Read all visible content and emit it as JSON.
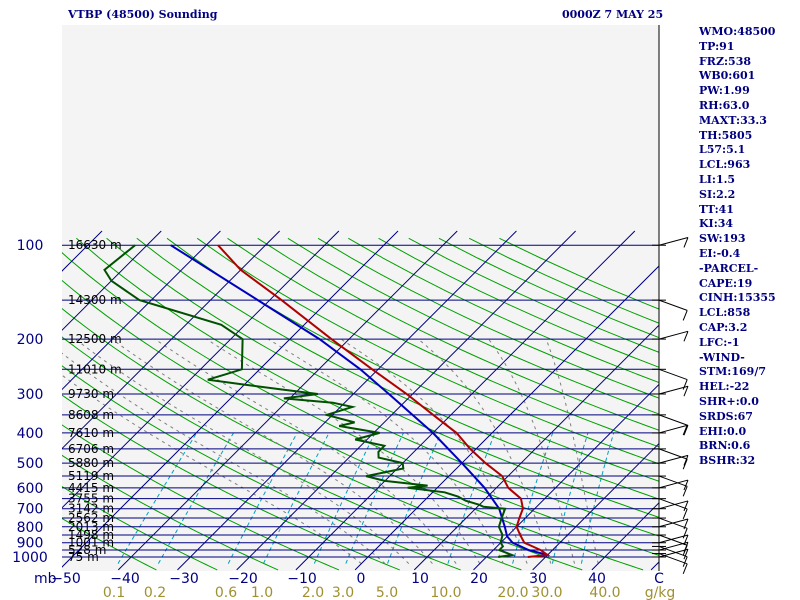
{
  "header": {
    "station": "VTBP (48500) Sounding",
    "time": "0000Z  7 MAY 25"
  },
  "stats": [
    "WMO:48500",
    "TP:91",
    "FRZ:538",
    "WB0:601",
    "PW:1.99",
    "RH:63.0",
    "MAXT:33.3",
    "TH:5805",
    "L57:5.1",
    "LCL:963",
    "LI:1.5",
    "SI:2.2",
    "TT:41",
    "KI:34",
    "SW:193",
    "EI:-0.4",
    "-PARCEL-",
    "CAPE:19",
    "CINH:15355",
    "LCL:858",
    "CAP:3.2",
    "LFC:-1",
    "-WIND-",
    "STM:169/7",
    "HEL:-22",
    "SHR+:0.0",
    "SRDS:67",
    "EHI:0.0",
    "BRN:0.6",
    "BSHR:32"
  ],
  "colors": {
    "text": "#000080",
    "isobar": "#000080",
    "isotherm": "#000080",
    "dry_adiabat": "#00a000",
    "moist_adiabat": "#808080",
    "mixing_ratio": "#00a0c0",
    "temperature": "#b00000",
    "dewpoint": "#005000",
    "parcel": "#0000c0",
    "wind": "#000000",
    "mixing_label": "#a09030"
  },
  "chart_data": {
    "type": "skew-t",
    "pressure_ticks": [
      100,
      200,
      300,
      400,
      500,
      600,
      700,
      800,
      900,
      1000
    ],
    "unit_label": "mb",
    "isobars": [
      {
        "p": 100,
        "height": "16630 m"
      },
      {
        "p": 150,
        "height": "14300 m"
      },
      {
        "p": 200,
        "height": "12500 m"
      },
      {
        "p": 250,
        "height": "11010 m"
      },
      {
        "p": 300,
        "height": "9730 m"
      },
      {
        "p": 350,
        "height": "8608 m"
      },
      {
        "p": 400,
        "height": "7610 m"
      },
      {
        "p": 450,
        "height": "6706 m"
      },
      {
        "p": 500,
        "height": "5880 m"
      },
      {
        "p": 550,
        "height": "5119 m"
      },
      {
        "p": 600,
        "height": "4415 m"
      },
      {
        "p": 650,
        "height": "3755 m"
      },
      {
        "p": 700,
        "height": "3142 m"
      },
      {
        "p": 750,
        "height": "2562 m"
      },
      {
        "p": 800,
        "height": "2013 m"
      },
      {
        "p": 850,
        "height": "1498 m"
      },
      {
        "p": 900,
        "height": "1001 m"
      },
      {
        "p": 950,
        "height": "528 m"
      },
      {
        "p": 1000,
        "height": "75 m"
      }
    ],
    "temperature_ticks": [
      "−50",
      "−40",
      "−30",
      "−20",
      "−10",
      "0",
      "10",
      "20",
      "30",
      "40"
    ],
    "temperature_tick_values": [
      -50,
      -40,
      -30,
      -20,
      -10,
      0,
      10,
      20,
      30,
      40
    ],
    "extra_bottom_label": "C",
    "mixing_ratio_ticks": [
      "0.1",
      "0.2",
      "0.6",
      "1.0",
      "2.0",
      "3.0",
      "5.0",
      "10.0",
      "20.0",
      "30.0",
      "40.0"
    ],
    "mixing_ratio_unit": "g/kg",
    "temperature_profile": [
      [
        1000,
        27
      ],
      [
        985,
        30
      ],
      [
        950,
        28
      ],
      [
        925,
        26
      ],
      [
        900,
        24
      ],
      [
        850,
        22
      ],
      [
        800,
        20
      ],
      [
        750,
        19
      ],
      [
        700,
        18
      ],
      [
        650,
        16
      ],
      [
        600,
        12
      ],
      [
        550,
        9
      ],
      [
        500,
        4
      ],
      [
        450,
        -1
      ],
      [
        400,
        -6
      ],
      [
        350,
        -13
      ],
      [
        300,
        -21
      ],
      [
        250,
        -31
      ],
      [
        200,
        -43
      ],
      [
        150,
        -58
      ],
      [
        120,
        -70
      ],
      [
        100,
        -78
      ]
    ],
    "dewpoint_profile": [
      [
        1000,
        22
      ],
      [
        985,
        24
      ],
      [
        950,
        21
      ],
      [
        925,
        21
      ],
      [
        900,
        20
      ],
      [
        850,
        19
      ],
      [
        800,
        17
      ],
      [
        750,
        16
      ],
      [
        700,
        15
      ],
      [
        690,
        11
      ],
      [
        680,
        10
      ],
      [
        660,
        7
      ],
      [
        640,
        5
      ],
      [
        620,
        2
      ],
      [
        600,
        -5
      ],
      [
        590,
        -2
      ],
      [
        570,
        -10
      ],
      [
        550,
        -14
      ],
      [
        520,
        -9
      ],
      [
        500,
        -10
      ],
      [
        480,
        -15
      ],
      [
        460,
        -16
      ],
      [
        440,
        -16
      ],
      [
        420,
        -22
      ],
      [
        400,
        -19
      ],
      [
        380,
        -27
      ],
      [
        370,
        -25
      ],
      [
        360,
        -28
      ],
      [
        350,
        -31
      ],
      [
        330,
        -28
      ],
      [
        320,
        -32
      ],
      [
        310,
        -41
      ],
      [
        300,
        -36
      ],
      [
        290,
        -43
      ],
      [
        280,
        -50
      ],
      [
        270,
        -57
      ],
      [
        260,
        -55
      ],
      [
        250,
        -53
      ],
      [
        200,
        -58
      ],
      [
        180,
        -64
      ],
      [
        150,
        -82
      ],
      [
        130,
        -90
      ],
      [
        120,
        -93
      ],
      [
        100,
        -92
      ]
    ],
    "parcel_profile": [
      [
        985,
        30
      ],
      [
        950,
        26
      ],
      [
        900,
        22
      ],
      [
        858,
        20
      ],
      [
        800,
        18
      ],
      [
        700,
        14
      ],
      [
        600,
        8
      ],
      [
        500,
        0
      ],
      [
        400,
        -10
      ],
      [
        300,
        -24
      ],
      [
        250,
        -33
      ],
      [
        200,
        -45
      ],
      [
        150,
        -62
      ],
      [
        100,
        -86
      ]
    ]
  }
}
